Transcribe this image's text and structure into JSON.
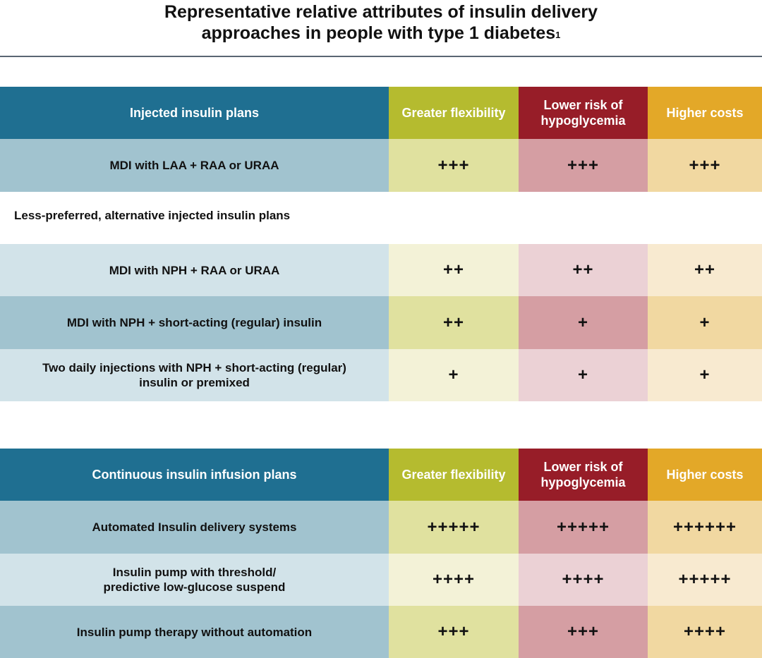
{
  "title": {
    "line1": "Representative relative attributes of insulin delivery",
    "line2": "approaches in people with type 1 diabetes",
    "footnote": "1"
  },
  "columns": {
    "flexibility": "Greater flexibility",
    "hypo_line1": "Lower risk of",
    "hypo_line2": "hypoglycemia",
    "costs": "Higher costs"
  },
  "table1": {
    "header": "Injected insulin plans",
    "rows": [
      {
        "label": "MDI with LAA + RAA or URAA",
        "flexibility": "+++",
        "hypo": "+++",
        "costs": "+++"
      }
    ]
  },
  "section_note": "Less-preferred, alternative injected insulin plans",
  "table2": {
    "rows": [
      {
        "label": "MDI with NPH + RAA or URAA",
        "flexibility": "++",
        "hypo": "++",
        "costs": "++"
      },
      {
        "label": "MDI with NPH + short-acting (regular) insulin",
        "flexibility": "++",
        "hypo": "+",
        "costs": "+"
      },
      {
        "label_line1": "Two daily injections with NPH + short-acting (regular)",
        "label_line2": "insulin or premixed",
        "flexibility": "+",
        "hypo": "+",
        "costs": "+"
      }
    ]
  },
  "table3": {
    "header": "Continuous insulin infusion plans",
    "rows": [
      {
        "label": "Automated Insulin delivery systems",
        "flexibility": "+++++",
        "hypo": "+++++",
        "costs": "++++++"
      },
      {
        "label_line1": "Insulin pump with threshold/",
        "label_line2": "predictive low-glucose suspend",
        "flexibility": "++++",
        "hypo": "++++",
        "costs": "+++++"
      },
      {
        "label": "Insulin pump therapy without automation",
        "flexibility": "+++",
        "hypo": "+++",
        "costs": "++++"
      }
    ]
  },
  "colors": {
    "header_blue": "#1f6f91",
    "header_green": "#b5bb2f",
    "header_red": "#971d28",
    "header_orange": "#e3a828"
  }
}
